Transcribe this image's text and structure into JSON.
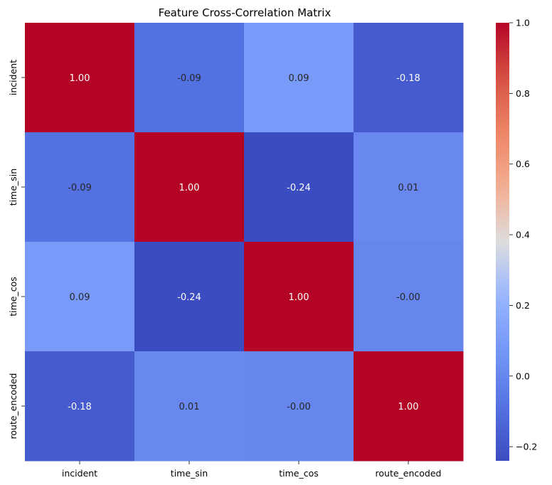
{
  "chart_data": {
    "type": "heatmap",
    "title": "Feature Cross-Correlation Matrix",
    "x_categories": [
      "incident",
      "time_sin",
      "time_cos",
      "route_encoded"
    ],
    "y_categories": [
      "incident",
      "time_sin",
      "time_cos",
      "route_encoded"
    ],
    "values": [
      [
        1.0,
        -0.09,
        0.09,
        -0.18
      ],
      [
        -0.09,
        1.0,
        -0.24,
        0.01
      ],
      [
        0.09,
        -0.24,
        1.0,
        -0.0
      ],
      [
        -0.18,
        0.01,
        -0.0,
        1.0
      ]
    ],
    "value_labels": [
      [
        "1.00",
        "-0.09",
        "0.09",
        "-0.18"
      ],
      [
        "-0.09",
        "1.00",
        "-0.24",
        "0.01"
      ],
      [
        "0.09",
        "-0.24",
        "1.00",
        "-0.00"
      ],
      [
        "-0.18",
        "0.01",
        "-0.00",
        "1.00"
      ]
    ],
    "colormap": "coolwarm",
    "vmin": -0.24,
    "vmax": 1.0,
    "colorbar_ticks": [
      -0.2,
      0.0,
      0.2,
      0.4,
      0.6,
      0.8,
      1.0
    ],
    "colorbar_tick_labels": [
      "−0.2",
      "0.0",
      "0.2",
      "0.4",
      "0.6",
      "0.8",
      "1.0"
    ],
    "grid": false,
    "legend": "colorbar-right"
  }
}
